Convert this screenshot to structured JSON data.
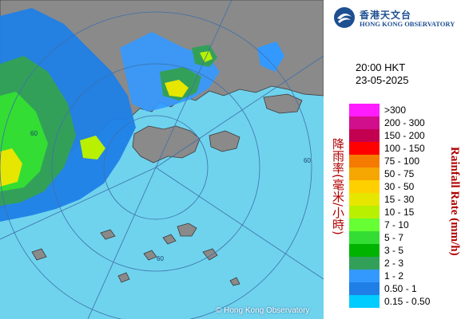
{
  "map": {
    "copyright": "© Hong Kong Observatory",
    "ring_labels": [
      "60",
      "60",
      "60"
    ],
    "colors": {
      "sea": "#6fd3ee",
      "land": "#8a8a8a",
      "range_rings": "#3f6fa8"
    }
  },
  "branding": {
    "name_zh": "香港天文台",
    "name_en": "HONG KONG OBSERVATORY"
  },
  "timestamp": {
    "time": "20:00 HKT",
    "date": "23-05-2025"
  },
  "legend": {
    "title_zh": "降雨率(毫米/小時)",
    "title_en": "Rainfall Rate (mm/h)",
    "items": [
      {
        "label": ">300",
        "color": "#ff1cff"
      },
      {
        "label": "200 - 300",
        "color": "#d10e8c"
      },
      {
        "label": "150 - 200",
        "color": "#c2004f"
      },
      {
        "label": "100 - 150",
        "color": "#ff0000"
      },
      {
        "label": "75 - 100",
        "color": "#f57a00"
      },
      {
        "label": "50 - 75",
        "color": "#f5a600"
      },
      {
        "label": "30 - 50",
        "color": "#ffd000"
      },
      {
        "label": "15 - 30",
        "color": "#e6e600"
      },
      {
        "label": "10 - 15",
        "color": "#b8f000"
      },
      {
        "label": "7 - 10",
        "color": "#66ff33"
      },
      {
        "label": "5 - 7",
        "color": "#33dd33"
      },
      {
        "label": "3 - 5",
        "color": "#00b300"
      },
      {
        "label": "2 - 3",
        "color": "#33a05a"
      },
      {
        "label": "1 - 2",
        "color": "#3399ff"
      },
      {
        "label": "0.50 - 1",
        "color": "#1f7fe6"
      },
      {
        "label": "0.15 - 0.50",
        "color": "#00ccff"
      }
    ]
  }
}
